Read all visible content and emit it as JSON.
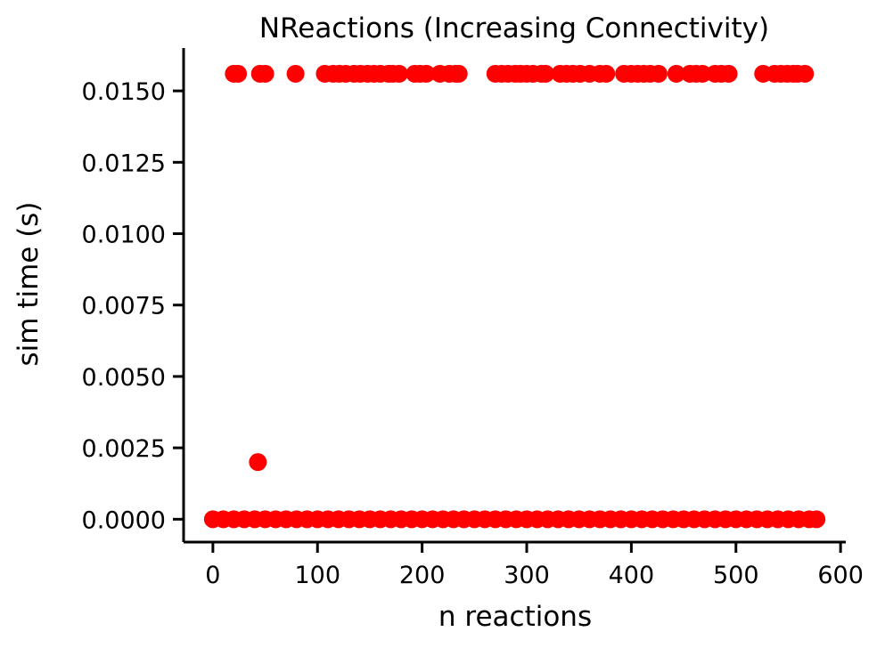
{
  "chart_data": {
    "type": "scatter",
    "title": "NReactions (Increasing Connectivity)",
    "xlabel": "n reactions",
    "ylabel": "sim time (s)",
    "xlim": [
      -28,
      605
    ],
    "ylim": [
      -0.0008,
      0.0165
    ],
    "xticks": [
      0,
      100,
      200,
      300,
      400,
      500,
      600
    ],
    "xtick_labels": [
      "0",
      "100",
      "200",
      "300",
      "400",
      "500",
      "600"
    ],
    "yticks": [
      0.0,
      0.0025,
      0.005,
      0.0075,
      0.01,
      0.0125,
      0.015
    ],
    "ytick_labels": [
      "0.0000",
      "0.0025",
      "0.0050",
      "0.0075",
      "0.0100",
      "0.0125",
      "0.0150"
    ],
    "grid": false,
    "marker_color": "#ff0000",
    "series": [
      {
        "points": [
          [
            0,
            0
          ],
          [
            10,
            0
          ],
          [
            20,
            0
          ],
          [
            30,
            0
          ],
          [
            40,
            0
          ],
          [
            50,
            0
          ],
          [
            60,
            0
          ],
          [
            70,
            0
          ],
          [
            80,
            0
          ],
          [
            90,
            0
          ],
          [
            100,
            0
          ],
          [
            110,
            0
          ],
          [
            120,
            0
          ],
          [
            130,
            0
          ],
          [
            140,
            0
          ],
          [
            150,
            0
          ],
          [
            160,
            0
          ],
          [
            170,
            0
          ],
          [
            180,
            0
          ],
          [
            190,
            0
          ],
          [
            200,
            0
          ],
          [
            210,
            0
          ],
          [
            220,
            0
          ],
          [
            230,
            0
          ],
          [
            240,
            0
          ],
          [
            250,
            0
          ],
          [
            260,
            0
          ],
          [
            270,
            0
          ],
          [
            280,
            0
          ],
          [
            290,
            0
          ],
          [
            300,
            0
          ],
          [
            310,
            0
          ],
          [
            320,
            0
          ],
          [
            330,
            0
          ],
          [
            340,
            0
          ],
          [
            350,
            0
          ],
          [
            360,
            0
          ],
          [
            370,
            0
          ],
          [
            380,
            0
          ],
          [
            390,
            0
          ],
          [
            400,
            0
          ],
          [
            410,
            0
          ],
          [
            420,
            0
          ],
          [
            430,
            0
          ],
          [
            440,
            0
          ],
          [
            450,
            0
          ],
          [
            460,
            0
          ],
          [
            470,
            0
          ],
          [
            480,
            0
          ],
          [
            490,
            0
          ],
          [
            500,
            0
          ],
          [
            510,
            0
          ],
          [
            520,
            0
          ],
          [
            530,
            0
          ],
          [
            540,
            0
          ],
          [
            550,
            0
          ],
          [
            560,
            0
          ],
          [
            570,
            0
          ],
          [
            577,
            0
          ],
          [
            43,
            0.002
          ],
          [
            20,
            0.0156
          ],
          [
            24,
            0.0156
          ],
          [
            45,
            0.0156
          ],
          [
            50,
            0.0156
          ],
          [
            79,
            0.0156
          ],
          [
            107,
            0.0156
          ],
          [
            115,
            0.0156
          ],
          [
            121,
            0.0156
          ],
          [
            127,
            0.0156
          ],
          [
            135,
            0.0156
          ],
          [
            141,
            0.0156
          ],
          [
            148,
            0.0156
          ],
          [
            154,
            0.0156
          ],
          [
            160,
            0.0156
          ],
          [
            168,
            0.0156
          ],
          [
            172,
            0.0156
          ],
          [
            178,
            0.0156
          ],
          [
            193,
            0.0156
          ],
          [
            198,
            0.0156
          ],
          [
            204,
            0.0156
          ],
          [
            217,
            0.0156
          ],
          [
            226,
            0.0156
          ],
          [
            232,
            0.0156
          ],
          [
            235,
            0.0156
          ],
          [
            270,
            0.0156
          ],
          [
            276,
            0.0156
          ],
          [
            282,
            0.0156
          ],
          [
            289,
            0.0156
          ],
          [
            294,
            0.0156
          ],
          [
            300,
            0.0156
          ],
          [
            306,
            0.0156
          ],
          [
            314,
            0.0156
          ],
          [
            318,
            0.0156
          ],
          [
            332,
            0.0156
          ],
          [
            338,
            0.0156
          ],
          [
            344,
            0.0156
          ],
          [
            351,
            0.0156
          ],
          [
            360,
            0.0156
          ],
          [
            370,
            0.0156
          ],
          [
            376,
            0.0156
          ],
          [
            393,
            0.0156
          ],
          [
            400,
            0.0156
          ],
          [
            406,
            0.0156
          ],
          [
            412,
            0.0156
          ],
          [
            418,
            0.0156
          ],
          [
            426,
            0.0156
          ],
          [
            443,
            0.0156
          ],
          [
            456,
            0.0156
          ],
          [
            462,
            0.0156
          ],
          [
            468,
            0.0156
          ],
          [
            480,
            0.0156
          ],
          [
            486,
            0.0156
          ],
          [
            493,
            0.0156
          ],
          [
            526,
            0.0156
          ],
          [
            537,
            0.0156
          ],
          [
            543,
            0.0156
          ],
          [
            549,
            0.0156
          ],
          [
            555,
            0.0156
          ],
          [
            559,
            0.0156
          ],
          [
            566,
            0.0156
          ]
        ]
      }
    ]
  }
}
